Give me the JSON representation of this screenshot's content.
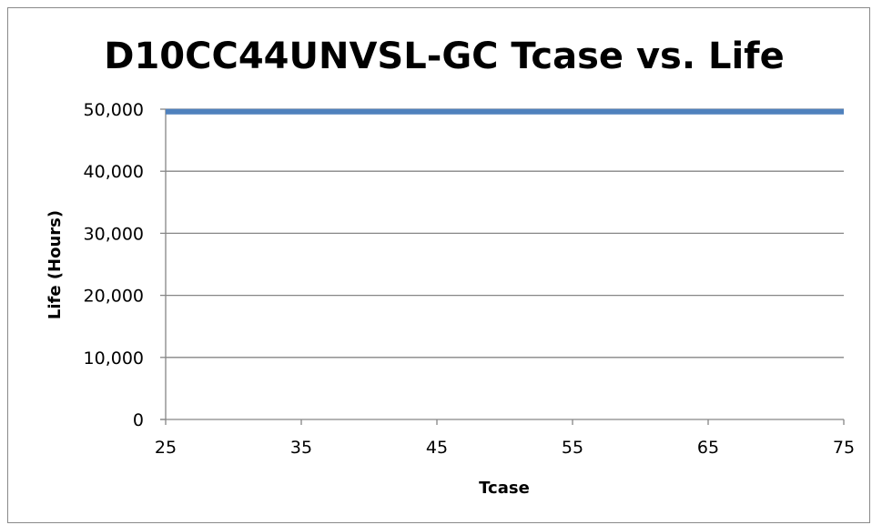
{
  "chart_data": {
    "type": "line",
    "title": "D10CC44UNVSL-GC Tcase vs. Life",
    "xlabel": "Tcase",
    "ylabel": "Life (Hours)",
    "xlim": [
      25,
      75
    ],
    "ylim": [
      0,
      50000
    ],
    "x_ticks": [
      25,
      35,
      45,
      55,
      65,
      75
    ],
    "x_tick_labels": [
      "25",
      "35",
      "45",
      "55",
      "65",
      "75"
    ],
    "y_ticks": [
      0,
      10000,
      20000,
      30000,
      40000,
      50000
    ],
    "y_tick_labels": [
      "0",
      "10,000",
      "20,000",
      "30,000",
      "40,000",
      "50,000"
    ],
    "grid": "horizontal",
    "legend": "none",
    "series": [
      {
        "color": "#4f81bd",
        "x": [
          25,
          75
        ],
        "y": [
          49600,
          49600
        ]
      }
    ]
  }
}
